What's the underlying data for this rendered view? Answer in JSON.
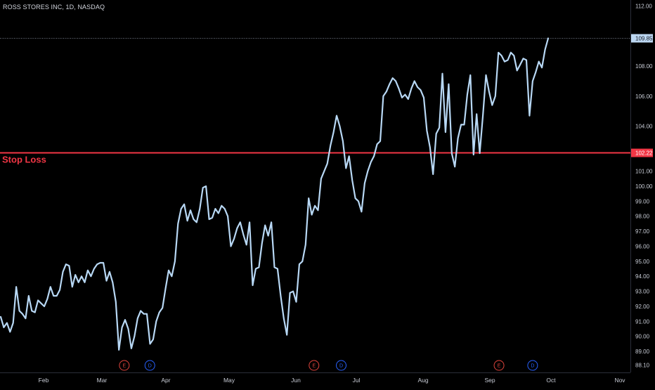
{
  "header": {
    "symbol": "ROSS STORES INC, 1D, NASDAQ"
  },
  "colors": {
    "background": "#000000",
    "price_line": "#b8d8f5",
    "stop_loss": "#f23645",
    "last_price_badge": "#bcd7f2",
    "earnings_marker": "#e0443c",
    "dividend_marker": "#2962ff",
    "axis_text": "#c8ccd6"
  },
  "chart_data": {
    "type": "line",
    "series": [
      {
        "values": [
          91.3,
          90.6,
          90.9,
          90.3,
          90.9,
          93.3,
          91.7,
          91.5,
          91.2,
          92.7,
          91.7,
          91.6,
          92.4,
          92.2,
          92.0,
          92.5,
          93.3,
          92.7,
          92.7,
          93.1,
          94.3,
          94.8,
          94.7,
          93.3,
          94.1,
          93.6,
          94.0,
          93.6,
          94.4,
          94.0,
          94.5,
          94.8,
          94.9,
          94.9,
          93.7,
          94.3,
          93.6,
          92.3,
          89.1,
          90.6,
          91.1,
          90.5,
          89.2,
          90.0,
          91.2,
          91.7,
          91.5,
          91.5,
          89.5,
          89.8,
          91.0,
          91.6,
          91.9,
          93.2,
          94.4,
          94.0,
          95.0,
          97.5,
          98.5,
          98.8,
          97.7,
          98.4,
          97.8,
          97.6,
          98.5,
          99.9,
          100.0,
          97.8,
          97.9,
          98.5,
          98.2,
          98.7,
          98.5,
          98.0,
          96.0,
          96.5,
          97.2,
          97.6,
          96.8,
          96.1,
          97.6,
          93.4,
          94.5,
          94.6,
          96.2,
          97.4,
          96.7,
          97.6,
          94.6,
          94.5,
          92.7,
          91.2,
          90.1,
          92.9,
          93.0,
          92.3,
          94.8,
          95.0,
          96.1,
          99.2,
          98.1,
          98.7,
          98.4,
          100.5,
          101.0,
          101.5,
          102.7,
          103.6,
          104.7,
          104.0,
          103.0,
          101.2,
          102.0,
          100.4,
          99.2,
          99.0,
          98.3,
          100.2,
          101.0,
          101.6,
          102.0,
          102.8,
          103.0,
          106.0,
          106.3,
          106.8,
          107.2,
          107.0,
          106.5,
          105.9,
          106.1,
          105.8,
          106.5,
          107.0,
          106.6,
          106.4,
          105.9,
          103.7,
          102.6,
          100.8,
          103.5,
          103.9,
          107.5,
          103.6,
          106.8,
          102.2,
          101.3,
          103.2,
          104.1,
          104.1,
          106.1,
          107.4,
          102.1,
          104.8,
          102.2,
          104.7,
          107.4,
          106.3,
          105.4,
          106.0,
          108.9,
          108.7,
          108.3,
          108.4,
          108.9,
          108.7,
          107.7,
          108.1,
          108.5,
          108.4,
          104.7,
          107.0,
          107.6,
          108.3,
          107.9,
          109.1,
          109.85
        ]
      }
    ],
    "x_axis": {
      "months": [
        "Feb",
        "Mar",
        "Apr",
        "May",
        "Jun",
        "Jul",
        "Aug",
        "Sep",
        "Oct",
        "Nov"
      ]
    },
    "y_axis": {
      "position": "right",
      "range": [
        87.6,
        112.4
      ],
      "ticks": [
        "112.00",
        "108.00",
        "106.00",
        "104.00",
        "101.00",
        "100.00",
        "99.00",
        "98.00",
        "97.00",
        "96.00",
        "95.00",
        "94.00",
        "93.00",
        "92.00",
        "91.00",
        "90.00",
        "89.00",
        "88.10"
      ]
    },
    "last_price": {
      "value": 109.85,
      "label": "109.85"
    },
    "stop_loss": {
      "value": 102.22,
      "label": "102.22",
      "text": "Stop Loss"
    },
    "events": [
      {
        "type": "earnings",
        "letter": "E",
        "month_position": 1.35
      },
      {
        "type": "dividend",
        "letter": "D",
        "month_position": 1.75
      },
      {
        "type": "earnings",
        "letter": "E",
        "month_position": 4.3
      },
      {
        "type": "dividend",
        "letter": "D",
        "month_position": 4.75
      },
      {
        "type": "earnings",
        "letter": "E",
        "month_position": 7.15
      },
      {
        "type": "dividend",
        "letter": "D",
        "month_position": 7.7
      }
    ],
    "grid": false
  }
}
